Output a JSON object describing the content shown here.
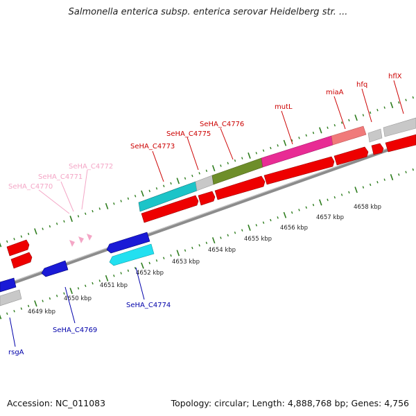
{
  "title": "Salmonella enterica subsp. enterica serovar Heidelberg str. ...",
  "footer": {
    "accession": "Accession: NC_011083",
    "summary": "Topology: circular; Length: 4,888,768 bp; Genes: 4,756"
  },
  "scale_labels": [
    "4649 kbp",
    "4650 kbp",
    "4651 kbp",
    "4652 kbp",
    "4653 kbp",
    "4654 kbp",
    "4655 kbp",
    "4656 kbp",
    "4657 kbp",
    "4658 kbp"
  ],
  "genes_top": [
    {
      "name": "SeHA_C4770",
      "color": "#f4a6c6"
    },
    {
      "name": "SeHA_C4771",
      "color": "#f4a6c6"
    },
    {
      "name": "SeHA_C4772",
      "color": "#f4a6c6"
    },
    {
      "name": "SeHA_C4773",
      "color": "#cc0000"
    },
    {
      "name": "SeHA_C4775",
      "color": "#cc0000"
    },
    {
      "name": "SeHA_C4776",
      "color": "#cc0000"
    },
    {
      "name": "mutL",
      "color": "#cc0000"
    },
    {
      "name": "miaA",
      "color": "#cc0000"
    },
    {
      "name": "hfq",
      "color": "#cc0000"
    },
    {
      "name": "hflX",
      "color": "#cc0000"
    }
  ],
  "genes_bottom": [
    {
      "name": "rsgA",
      "color": "#0000aa"
    },
    {
      "name": "SeHA_C4769",
      "color": "#0000aa"
    },
    {
      "name": "SeHA_C4774",
      "color": "#0000aa"
    }
  ],
  "colors": {
    "backbone": "#8a8a8a",
    "tick": "#2e7d1e",
    "cds_red": "#ee0000",
    "cyan": "#1cc4c8",
    "olive": "#6e8e2a",
    "magenta": "#e82c94",
    "salmon": "#f07a7a",
    "gray_feature": "#c8c8c8",
    "blue": "#1a1ad6",
    "light_cyan": "#22e0f0",
    "pink": "#f4a6c6"
  }
}
